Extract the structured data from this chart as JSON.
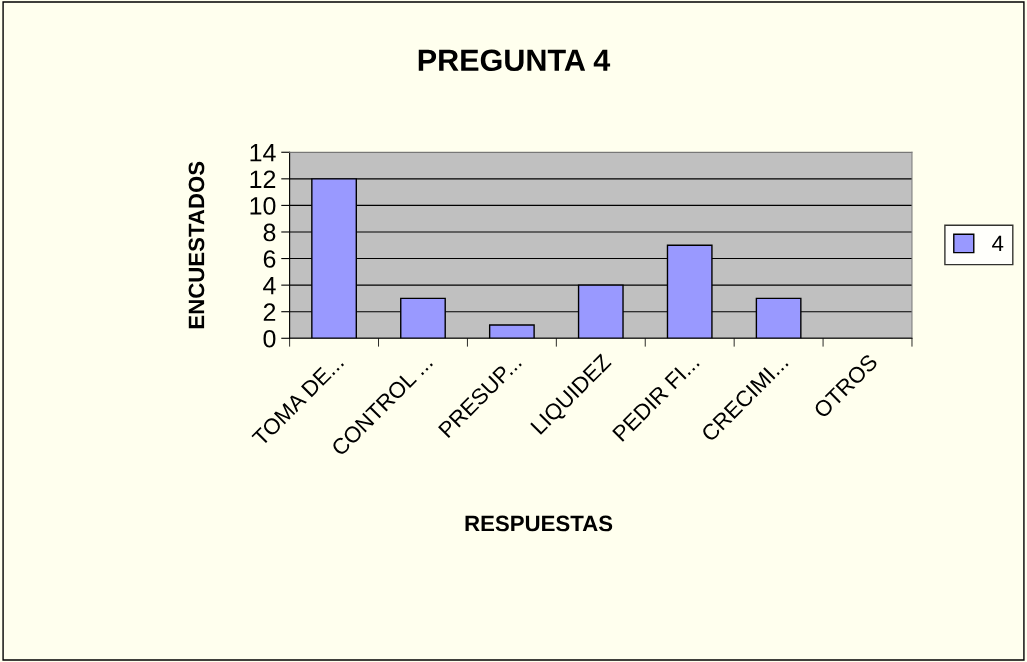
{
  "chart_data": {
    "type": "bar",
    "title": "PREGUNTA 4",
    "xlabel": "RESPUESTAS",
    "ylabel": "ENCUESTADOS",
    "categories": [
      "TOMA DE...",
      "CONTROL ...",
      "PRESUP...",
      "LIQUIDEZ",
      "PEDIR FI...",
      "CRECIMI...",
      "OTROS"
    ],
    "series": [
      {
        "name": "4",
        "color": "#9999ff",
        "values": [
          12,
          3,
          1,
          4,
          7,
          3,
          null
        ]
      }
    ],
    "ylim": [
      0,
      14
    ],
    "yticks": [
      0,
      2,
      4,
      6,
      8,
      10,
      12,
      14
    ],
    "grid": "y",
    "legend": "right"
  }
}
